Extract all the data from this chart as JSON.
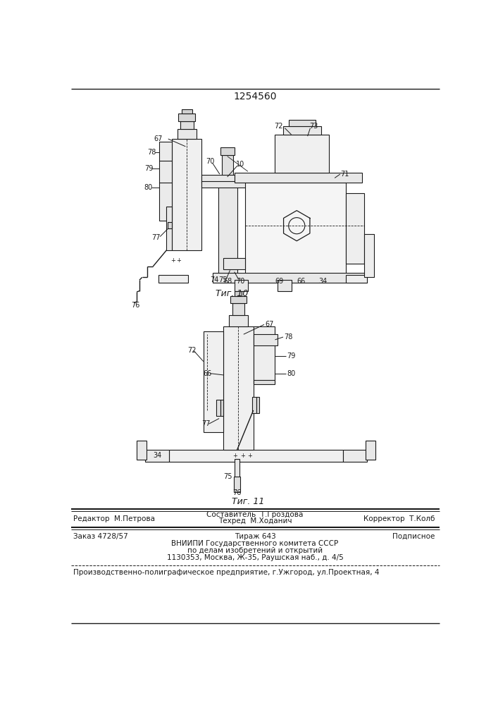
{
  "patent_number": "1254560",
  "fig10_caption": "Τиг. 10",
  "fig11_caption": "Τиг. 11",
  "footer_line1_left": "Редактор  М.Петрова",
  "footer_line1_center_top": "Составитель  Т.Гроздова",
  "footer_line1_center_bot": "Техред  М.Ходанич",
  "footer_line1_right": "Корректор  Т.Колб",
  "footer_line2_left": "Заказ 4728/57",
  "footer_line2_center": "Тираж 643",
  "footer_line2_right": "Подписное",
  "footer_vnipi": "ВНИИПИ Государственного комитета СССР",
  "footer_po_delam": "по делам изобретений и открытий",
  "footer_address": "1130353, Москва, Ж-35, Раушская наб., д. 4/5",
  "footer_production": "Производственно-полиграфическое предприятие, г.Ужгород, ул.Проектная, 4",
  "bg_color": "#ffffff",
  "text_color": "#1a1a1a",
  "line_color": "#1a1a1a"
}
